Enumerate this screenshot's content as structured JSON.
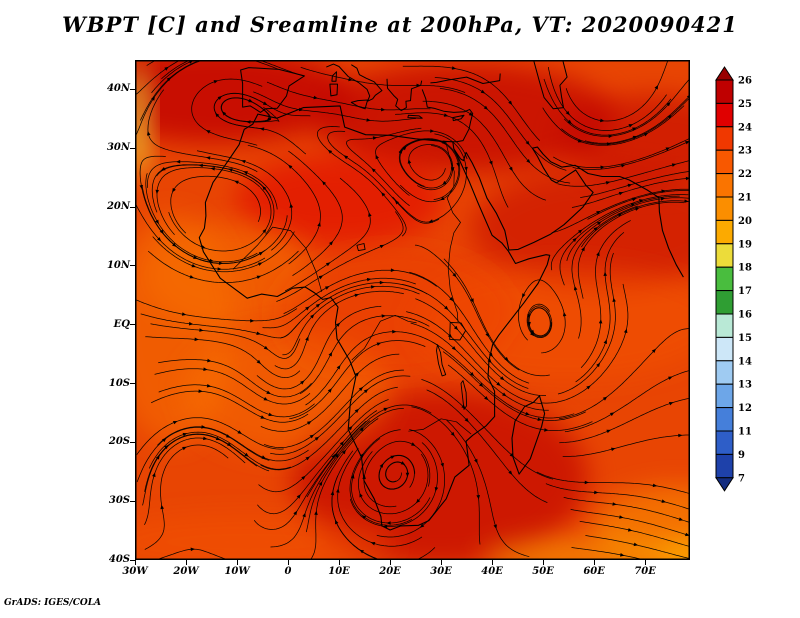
{
  "title": "WBPT [C] and Sreamline at 200hPa, VT: 2020090421",
  "credit": "GrADS: IGES/COLA",
  "chart_data": {
    "type": "heatmap",
    "subtype": "filled shaded field with streamline overlay (GrADS)",
    "title": "WBPT [C] and Sreamline at 200hPa, VT: 2020090421",
    "variable": "WBPT [C]",
    "overlay": "Sreamline",
    "level": "200hPa",
    "valid_time": "2020090421",
    "x_tick_labels": [
      "30W",
      "20W",
      "10W",
      "0",
      "10E",
      "20E",
      "30E",
      "40E",
      "50E",
      "60E",
      "70E"
    ],
    "y_tick_labels": [
      "40N",
      "30N",
      "20N",
      "10N",
      "EQ",
      "10S",
      "20S",
      "30S",
      "40S"
    ],
    "lon_range": [
      -30,
      78.8
    ],
    "lat_range": [
      -40,
      45
    ],
    "grid": false,
    "legend_position": "right",
    "colorbar": {
      "labels": [
        "26",
        "25",
        "24",
        "23",
        "22",
        "21",
        "20",
        "19",
        "18",
        "17",
        "16",
        "15",
        "14",
        "13",
        "12",
        "11",
        "9",
        "7"
      ],
      "segment_colors_top_to_bottom": [
        "#980000",
        "#bf0000",
        "#e00000",
        "#f03800",
        "#f85800",
        "#fa7400",
        "#fb8e00",
        "#fcaa00",
        "#ecdc3a",
        "#49bd3e",
        "#2f9e33",
        "#b9e9d6",
        "#cde7f8",
        "#9fcbf2",
        "#6da6e8",
        "#457fda",
        "#2e5ec8",
        "#1e41aa",
        "#142d80"
      ]
    },
    "dominant_field_colors": [
      "#c81400",
      "#e84503",
      "#f86400"
    ],
    "streamline_color": "#000000",
    "coastline_color": "#000000"
  }
}
